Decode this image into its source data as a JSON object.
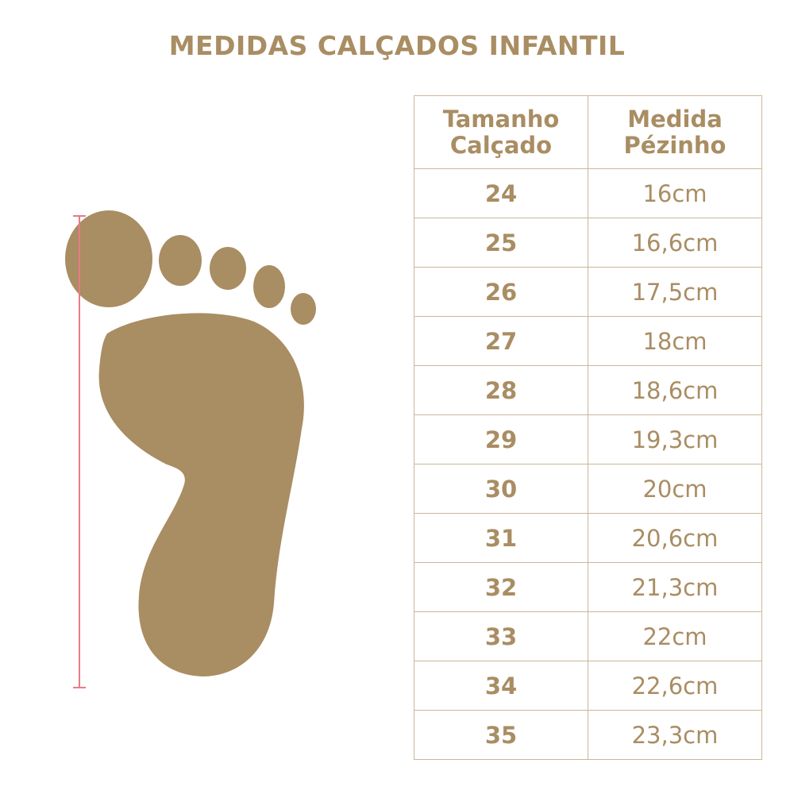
{
  "title": "MEDIDAS CALÇADOS INFANTIL",
  "colors": {
    "brand": "#a98d63",
    "measure_line": "#e97a86"
  },
  "table": {
    "headers": [
      "Tamanho Calçado",
      "Medida Pézinho"
    ],
    "rows": [
      [
        "24",
        "16cm"
      ],
      [
        "25",
        "16,6cm"
      ],
      [
        "26",
        "17,5cm"
      ],
      [
        "27",
        "18cm"
      ],
      [
        "28",
        "18,6cm"
      ],
      [
        "29",
        "19,3cm"
      ],
      [
        "30",
        "20cm"
      ],
      [
        "31",
        "20,6cm"
      ],
      [
        "32",
        "21,3cm"
      ],
      [
        "33",
        "22cm"
      ],
      [
        "34",
        "22,6cm"
      ],
      [
        "35",
        "23,3cm"
      ]
    ]
  }
}
